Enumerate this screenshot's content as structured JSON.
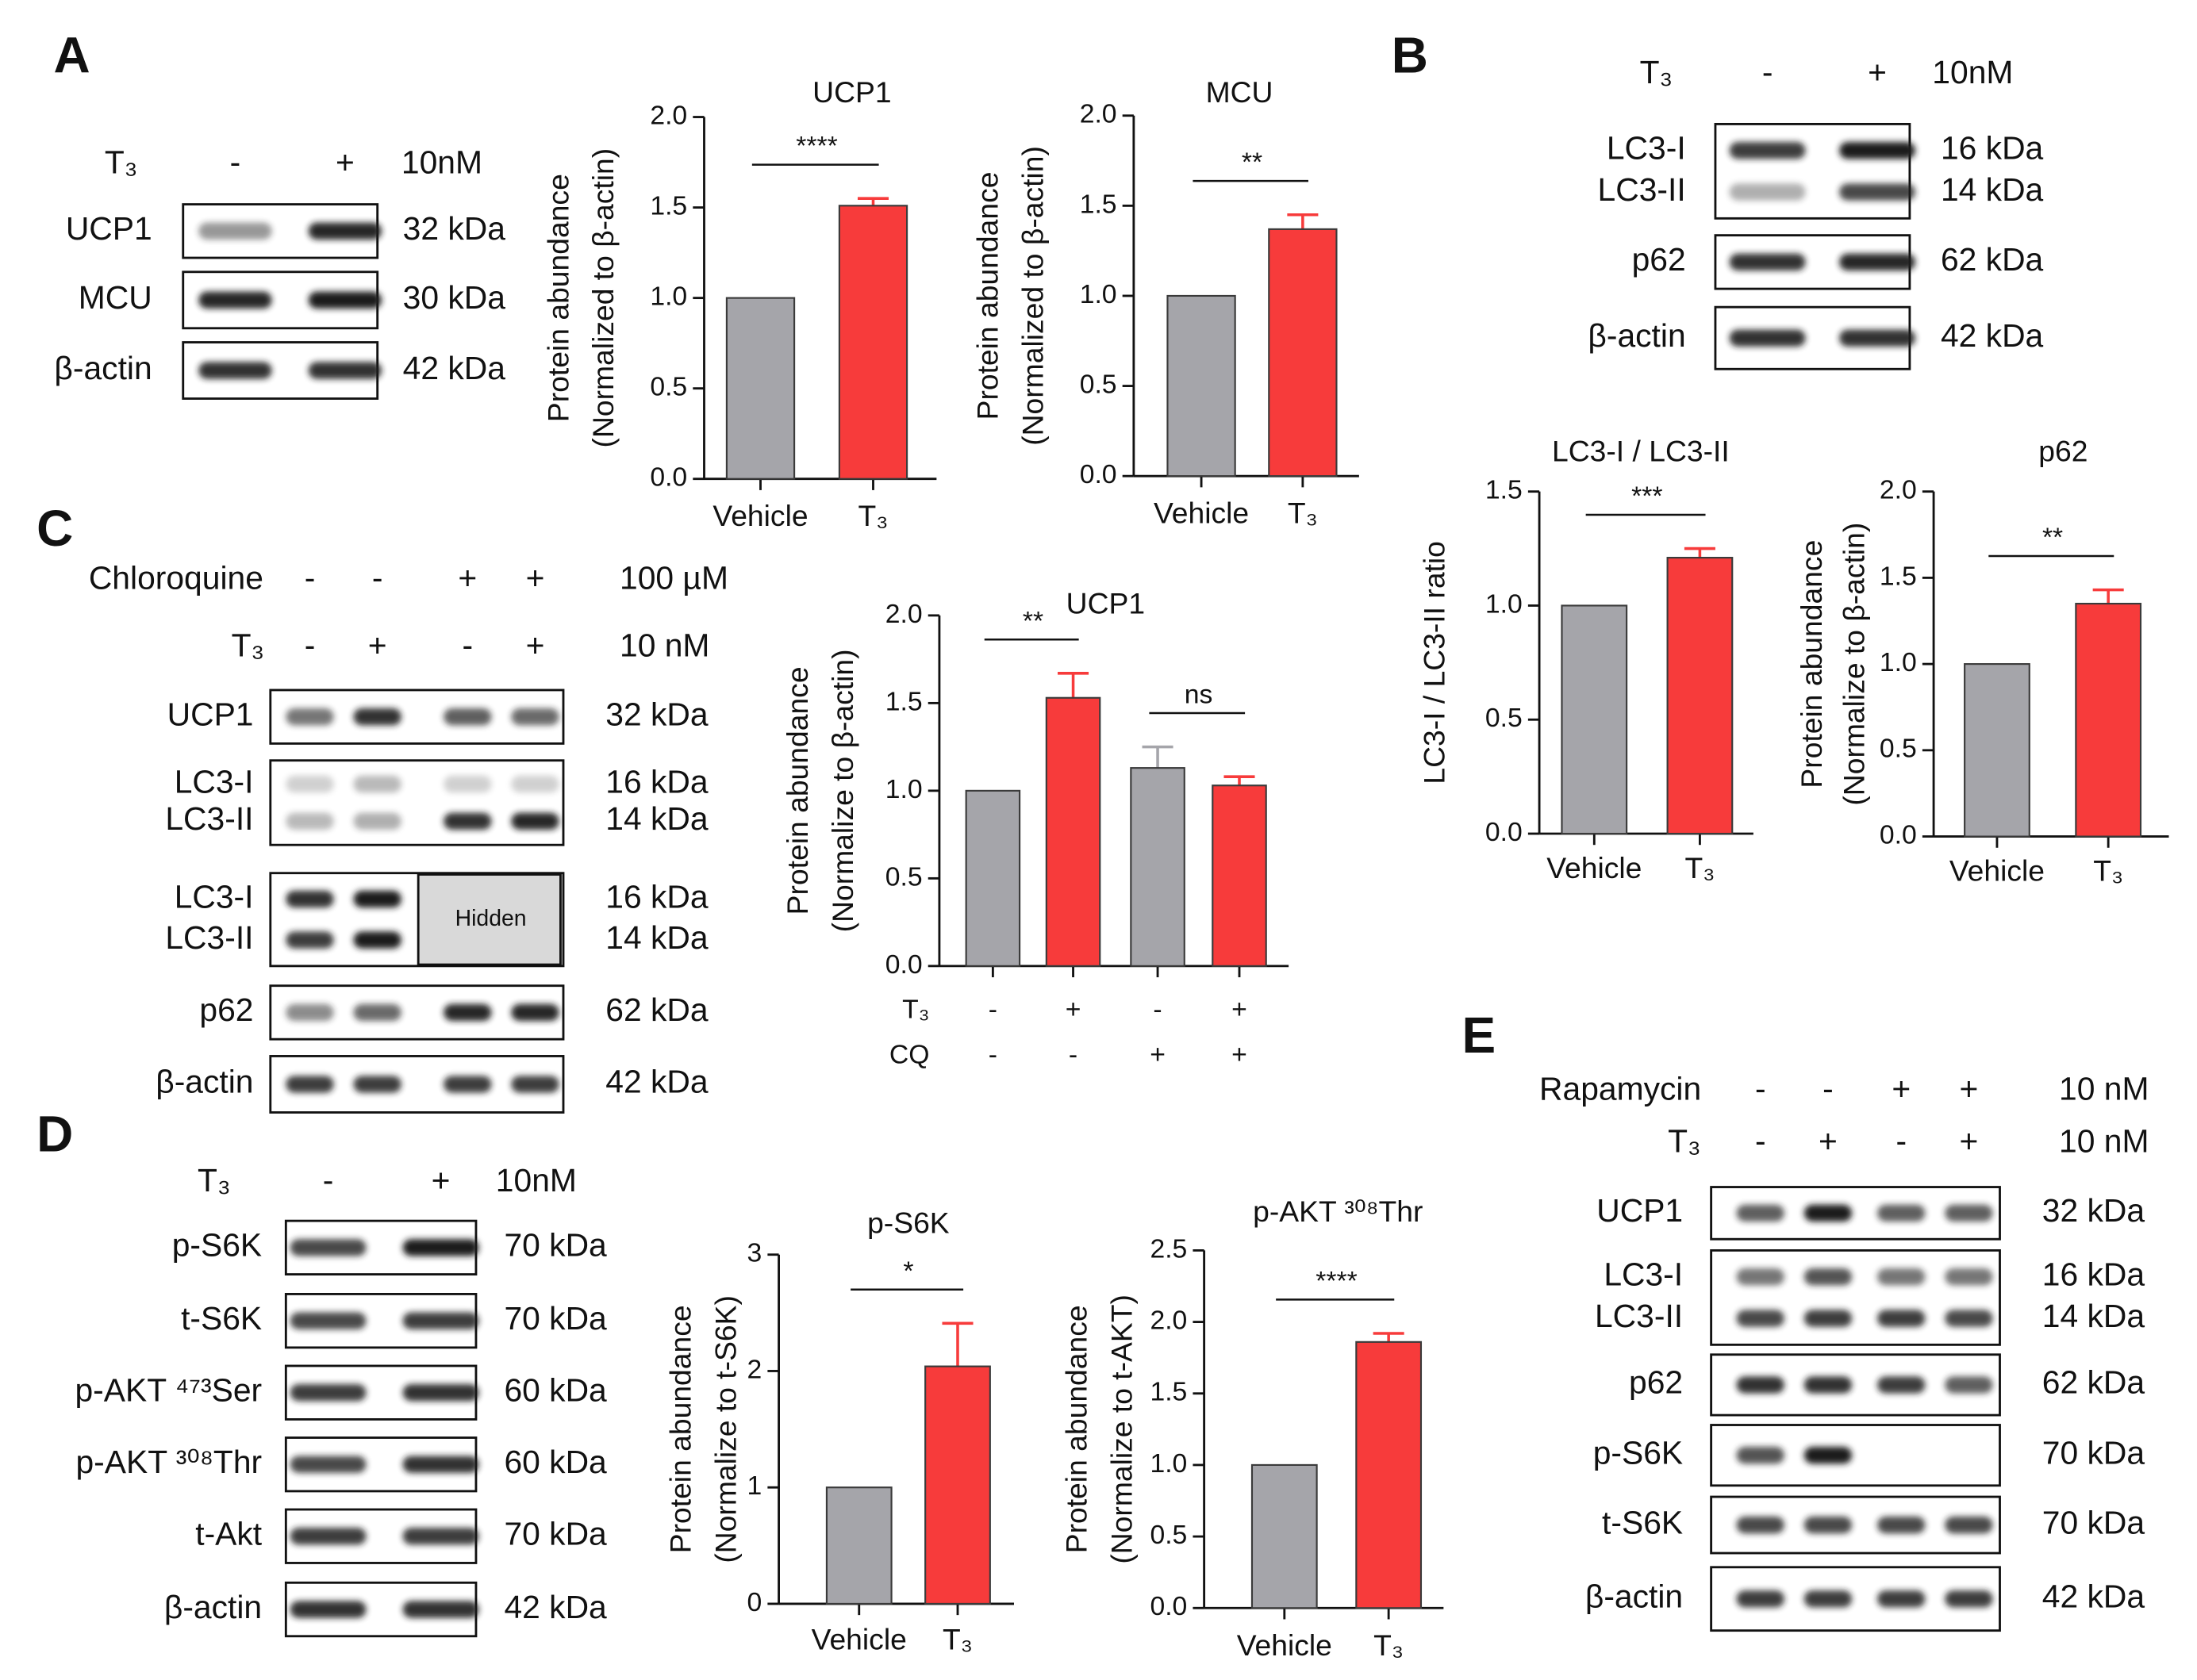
{
  "panels": [
    "A",
    "B",
    "C",
    "D",
    "E"
  ],
  "blots": {
    "A": {
      "treatments": [
        {
          "label": "T₃",
          "marks": [
            "-",
            "+"
          ],
          "conc": "10nM"
        }
      ],
      "rows": [
        {
          "labels": [
            "UCP1"
          ],
          "kda": [
            "32 kDa"
          ]
        },
        {
          "labels": [
            "MCU"
          ],
          "kda": [
            "30 kDa"
          ]
        },
        {
          "labels": [
            "β-actin"
          ],
          "kda": [
            "42 kDa"
          ]
        }
      ]
    },
    "B": {
      "treatments": [
        {
          "label": "T₃",
          "marks": [
            "-",
            "+"
          ],
          "conc": "10nM"
        }
      ],
      "rows": [
        {
          "labels": [
            "LC3-I",
            "LC3-II"
          ],
          "kda": [
            "16 kDa",
            "14 kDa"
          ]
        },
        {
          "labels": [
            "p62"
          ],
          "kda": [
            "62 kDa"
          ]
        },
        {
          "labels": [
            "β-actin"
          ],
          "kda": [
            "42 kDa"
          ]
        }
      ]
    },
    "C": {
      "treatments": [
        {
          "label": "Chloroquine",
          "marks": [
            "-",
            "-",
            "+",
            "+"
          ],
          "conc": "100 µM"
        },
        {
          "label": "T₃",
          "marks": [
            "-",
            "+",
            "-",
            "+"
          ],
          "conc": "10 nM"
        }
      ],
      "rows": [
        {
          "labels": [
            "UCP1"
          ],
          "kda": [
            "32 kDa"
          ]
        },
        {
          "labels": [
            "LC3-I",
            "LC3-II"
          ],
          "kda": [
            "16 kDa",
            "14 kDa"
          ]
        },
        {
          "labels": [
            "LC3-I",
            "LC3-II"
          ],
          "kda": [
            "16 kDa",
            "14 kDa"
          ],
          "hidden": "Hidden"
        },
        {
          "labels": [
            "p62"
          ],
          "kda": [
            "62 kDa"
          ]
        },
        {
          "labels": [
            "β-actin"
          ],
          "kda": [
            "42 kDa"
          ]
        }
      ]
    },
    "D": {
      "treatments": [
        {
          "label": "T₃",
          "marks": [
            "-",
            "+"
          ],
          "conc": "10nM"
        }
      ],
      "rows": [
        {
          "labels": [
            "p-S6K"
          ],
          "kda": [
            "70 kDa"
          ]
        },
        {
          "labels": [
            "t-S6K"
          ],
          "kda": [
            "70 kDa"
          ]
        },
        {
          "labels": [
            "p-AKT ⁴⁷³Ser"
          ],
          "kda": [
            "60 kDa"
          ]
        },
        {
          "labels": [
            "p-AKT ³⁰⁸Thr"
          ],
          "kda": [
            "60 kDa"
          ]
        },
        {
          "labels": [
            "t-Akt"
          ],
          "kda": [
            "70 kDa"
          ]
        },
        {
          "labels": [
            "β-actin"
          ],
          "kda": [
            "42 kDa"
          ]
        }
      ]
    },
    "E": {
      "treatments": [
        {
          "label": "Rapamycin",
          "marks": [
            "-",
            "-",
            "+",
            "+"
          ],
          "conc": "10 nM"
        },
        {
          "label": "T₃",
          "marks": [
            "-",
            "+",
            "-",
            "+"
          ],
          "conc": "10 nM"
        }
      ],
      "rows": [
        {
          "labels": [
            "UCP1"
          ],
          "kda": [
            "32 kDa"
          ]
        },
        {
          "labels": [
            "LC3-I",
            "LC3-II"
          ],
          "kda": [
            "16 kDa",
            "14 kDa"
          ]
        },
        {
          "labels": [
            "p62"
          ],
          "kda": [
            "62 kDa"
          ]
        },
        {
          "labels": [
            "p-S6K"
          ],
          "kda": [
            "70 kDa"
          ]
        },
        {
          "labels": [
            "t-S6K"
          ],
          "kda": [
            "70 kDa"
          ]
        },
        {
          "labels": [
            "β-actin"
          ],
          "kda": [
            "42 kDa"
          ]
        }
      ]
    }
  },
  "chart_data": [
    {
      "type": "bar",
      "title": "UCP1",
      "ylabel": [
        "Protein abundance",
        "(Normalized to β-actin)"
      ],
      "categories": [
        "Vehicle",
        "T₃"
      ],
      "values": [
        1.0,
        1.51
      ],
      "errors": [
        null,
        0.04
      ],
      "colors": [
        "#a5a5aa",
        "#f73b3b"
      ],
      "significance": [
        "****"
      ],
      "ylim": [
        0,
        2
      ],
      "yticks": [
        {
          "value": 0,
          "label": "0.0"
        },
        0.5,
        {
          "value": 1,
          "label": "1.0"
        },
        1.5,
        {
          "value": 2,
          "label": "2.0"
        }
      ]
    },
    {
      "type": "bar",
      "title": "MCU",
      "ylabel": [
        "Protein abundance",
        "(Normalized to β-actin)"
      ],
      "categories": [
        "Vehicle",
        "T₃"
      ],
      "values": [
        1.0,
        1.37
      ],
      "errors": [
        null,
        0.08
      ],
      "colors": [
        "#a5a5aa",
        "#f73b3b"
      ],
      "significance": [
        "**"
      ],
      "ylim": [
        0,
        2
      ],
      "yticks": [
        {
          "value": 0,
          "label": "0.0"
        },
        0.5,
        {
          "value": 1,
          "label": "1.0"
        },
        1.5,
        {
          "value": 2,
          "label": "2.0"
        }
      ]
    },
    {
      "type": "bar",
      "title": "LC3-I / LC3-II",
      "ylabel": [
        "LC3-I / LC3-II ratio"
      ],
      "categories": [
        "Vehicle",
        "T₃"
      ],
      "values": [
        1.0,
        1.21
      ],
      "errors": [
        null,
        0.04
      ],
      "colors": [
        "#a5a5aa",
        "#f73b3b"
      ],
      "significance": [
        "***"
      ],
      "ylim": [
        0,
        1.5
      ],
      "yticks": [
        {
          "value": 0,
          "label": "0.0"
        },
        0.5,
        {
          "value": 1,
          "label": "1.0"
        },
        1.5
      ]
    },
    {
      "type": "bar",
      "title": "p62",
      "ylabel": [
        "Protein abundance",
        "(Normalize to β-actin)"
      ],
      "categories": [
        "Vehicle",
        "T₃"
      ],
      "values": [
        1.0,
        1.35
      ],
      "errors": [
        null,
        0.08
      ],
      "colors": [
        "#a5a5aa",
        "#f73b3b"
      ],
      "significance": [
        "**"
      ],
      "ylim": [
        0,
        2
      ],
      "yticks": [
        {
          "value": 0,
          "label": "0.0"
        },
        0.5,
        {
          "value": 1,
          "label": "1.0"
        },
        1.5,
        {
          "value": 2,
          "label": "2.0"
        }
      ]
    },
    {
      "type": "bar",
      "title": "UCP1",
      "ylabel": [
        "Protein abundance",
        "(Normalize to β-actin)"
      ],
      "conditions": [
        {
          "name": "T₃",
          "marks": [
            "-",
            "+",
            "-",
            "+"
          ]
        },
        {
          "name": "CQ",
          "marks": [
            "-",
            "-",
            "+",
            "+"
          ]
        }
      ],
      "values": [
        1.0,
        1.53,
        1.13,
        1.03
      ],
      "errors": [
        null,
        0.14,
        0.12,
        0.05
      ],
      "colors": [
        "#a5a5aa",
        "#f73b3b",
        "#a5a5aa",
        "#f73b3b"
      ],
      "significance": [
        "**",
        "ns"
      ],
      "ylim": [
        0,
        2
      ],
      "yticks": [
        {
          "value": 0,
          "label": "0.0"
        },
        0.5,
        {
          "value": 1,
          "label": "1.0"
        },
        1.5,
        {
          "value": 2,
          "label": "2.0"
        }
      ]
    },
    {
      "type": "bar",
      "title": "p-S6K",
      "ylabel": [
        "Protein abundance",
        "(Normalize to t-S6K)"
      ],
      "categories": [
        "Vehicle",
        "T₃"
      ],
      "values": [
        1.0,
        2.04
      ],
      "errors": [
        null,
        0.37
      ],
      "colors": [
        "#a5a5aa",
        "#f73b3b"
      ],
      "significance": [
        "*"
      ],
      "ylim": [
        0,
        3
      ],
      "yticks": [
        0,
        1,
        2,
        3
      ]
    },
    {
      "type": "bar",
      "title": "p-AKT ³⁰⁸Thr",
      "ylabel": [
        "Protein abundance",
        "(Normalize to t-AKT)"
      ],
      "categories": [
        "Vehicle",
        "T₃"
      ],
      "values": [
        1.0,
        1.86
      ],
      "errors": [
        null,
        0.06
      ],
      "colors": [
        "#a5a5aa",
        "#f73b3b"
      ],
      "significance": [
        "****"
      ],
      "ylim": [
        0,
        2.5
      ],
      "yticks": [
        {
          "value": 0,
          "label": "0.0"
        },
        0.5,
        {
          "value": 1,
          "label": "1.0"
        },
        1.5,
        {
          "value": 2,
          "label": "2.0"
        },
        2.5
      ]
    }
  ]
}
